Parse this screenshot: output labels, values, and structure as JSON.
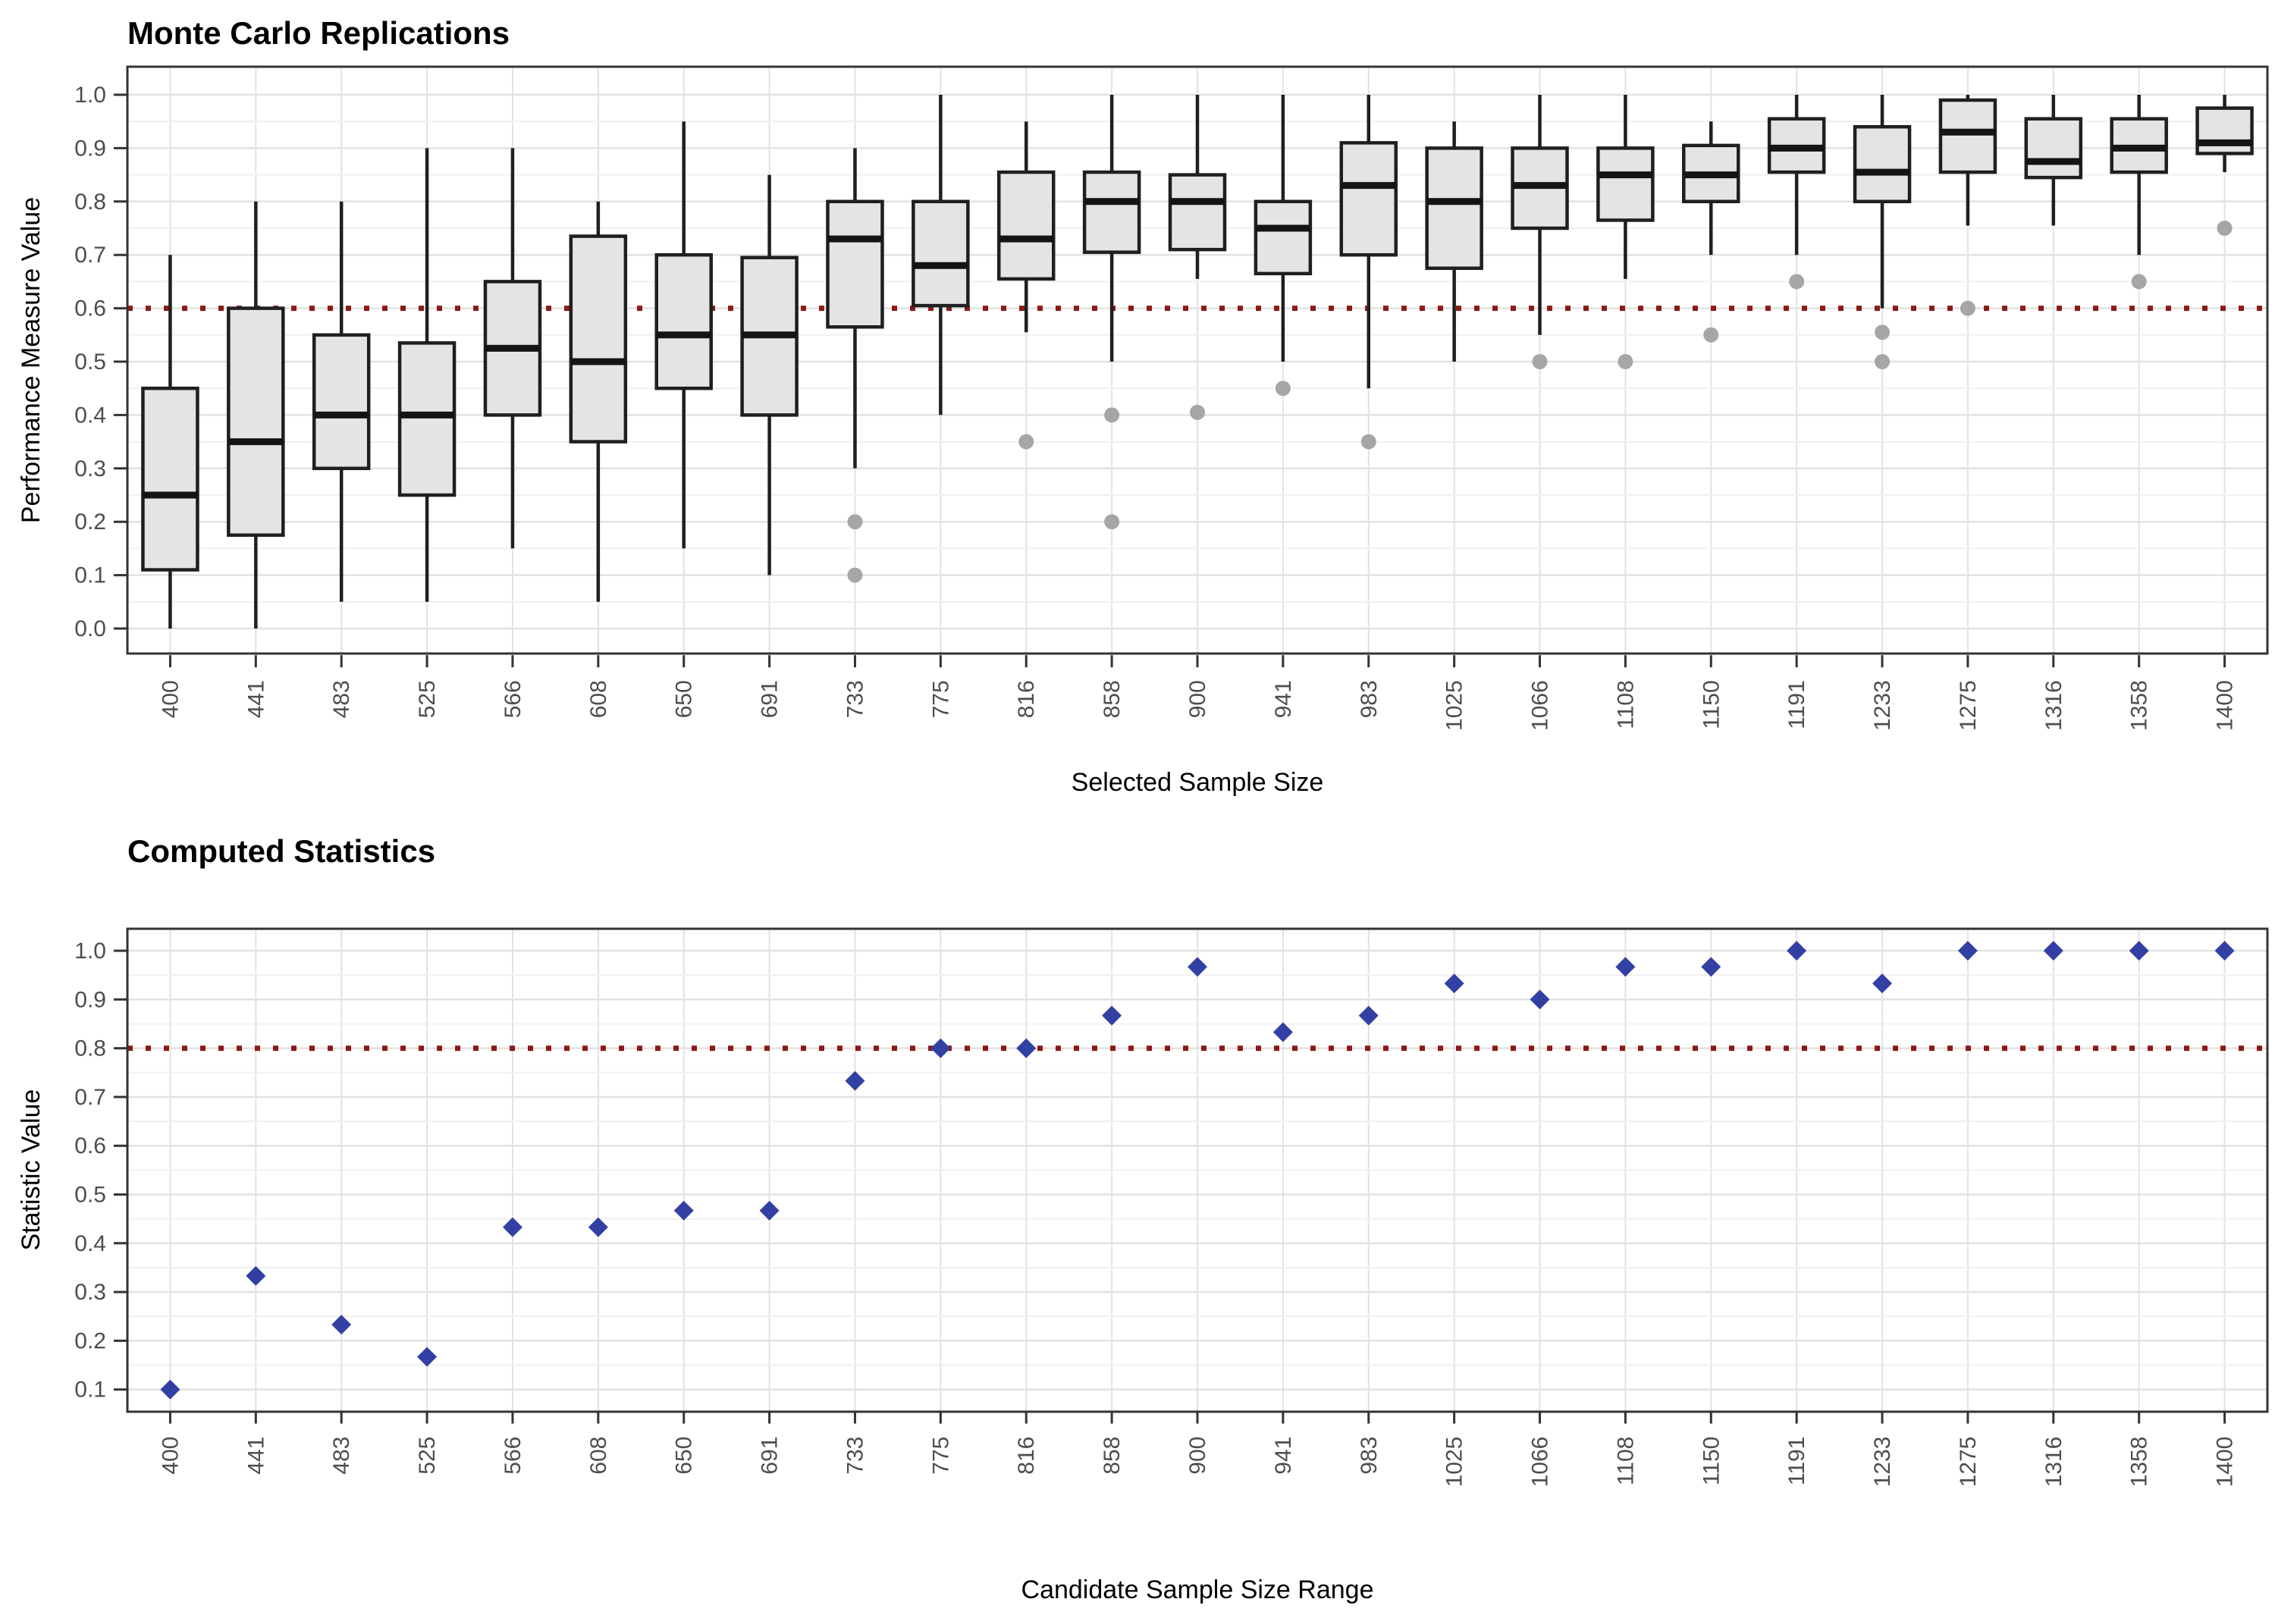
{
  "figure": {
    "background": "#ffffff",
    "panels": 2
  },
  "chart_data": [
    {
      "type": "boxplot",
      "title": "Monte Carlo Replications",
      "xlabel": "Selected Sample Size",
      "ylabel": "Performance Measure Value",
      "categories": [
        400,
        441,
        483,
        525,
        566,
        608,
        650,
        691,
        733,
        775,
        816,
        858,
        900,
        941,
        983,
        1025,
        1066,
        1108,
        1150,
        1191,
        1233,
        1275,
        1316,
        1358,
        1400
      ],
      "yticks": [
        0.0,
        0.1,
        0.2,
        0.3,
        0.4,
        0.5,
        0.6,
        0.7,
        0.8,
        0.9,
        1.0
      ],
      "ylim": [
        -0.05,
        1.05
      ],
      "grid": "on",
      "legend": "none",
      "ref_line": {
        "value": 0.6,
        "color": "#8B1A1A",
        "style": "dotted"
      },
      "boxes": [
        {
          "min": 0.0,
          "q1": 0.11,
          "median": 0.25,
          "q3": 0.45,
          "max": 0.7,
          "outliers": []
        },
        {
          "min": 0.0,
          "q1": 0.175,
          "median": 0.35,
          "q3": 0.6,
          "max": 0.8,
          "outliers": []
        },
        {
          "min": 0.05,
          "q1": 0.3,
          "median": 0.4,
          "q3": 0.55,
          "max": 0.8,
          "outliers": []
        },
        {
          "min": 0.05,
          "q1": 0.25,
          "median": 0.4,
          "q3": 0.535,
          "max": 0.9,
          "outliers": []
        },
        {
          "min": 0.15,
          "q1": 0.4,
          "median": 0.525,
          "q3": 0.65,
          "max": 0.9,
          "outliers": []
        },
        {
          "min": 0.05,
          "q1": 0.35,
          "median": 0.5,
          "q3": 0.735,
          "max": 0.8,
          "outliers": []
        },
        {
          "min": 0.15,
          "q1": 0.45,
          "median": 0.55,
          "q3": 0.7,
          "max": 0.95,
          "outliers": []
        },
        {
          "min": 0.1,
          "q1": 0.4,
          "median": 0.55,
          "q3": 0.695,
          "max": 0.85,
          "outliers": []
        },
        {
          "min": 0.3,
          "q1": 0.565,
          "median": 0.73,
          "q3": 0.8,
          "max": 0.9,
          "outliers": [
            0.2,
            0.1
          ]
        },
        {
          "min": 0.4,
          "q1": 0.605,
          "median": 0.68,
          "q3": 0.8,
          "max": 1.0,
          "outliers": []
        },
        {
          "min": 0.555,
          "q1": 0.655,
          "median": 0.73,
          "q3": 0.855,
          "max": 0.95,
          "outliers": [
            0.35
          ]
        },
        {
          "min": 0.5,
          "q1": 0.705,
          "median": 0.8,
          "q3": 0.855,
          "max": 1.0,
          "outliers": [
            0.4,
            0.2
          ]
        },
        {
          "min": 0.655,
          "q1": 0.71,
          "median": 0.8,
          "q3": 0.85,
          "max": 1.0,
          "outliers": [
            0.405
          ]
        },
        {
          "min": 0.5,
          "q1": 0.665,
          "median": 0.75,
          "q3": 0.8,
          "max": 1.0,
          "outliers": [
            0.45
          ]
        },
        {
          "min": 0.45,
          "q1": 0.7,
          "median": 0.83,
          "q3": 0.91,
          "max": 1.0,
          "outliers": [
            0.35
          ]
        },
        {
          "min": 0.5,
          "q1": 0.675,
          "median": 0.8,
          "q3": 0.9,
          "max": 0.95,
          "outliers": []
        },
        {
          "min": 0.55,
          "q1": 0.75,
          "median": 0.83,
          "q3": 0.9,
          "max": 1.0,
          "outliers": [
            0.5
          ]
        },
        {
          "min": 0.655,
          "q1": 0.765,
          "median": 0.85,
          "q3": 0.9,
          "max": 1.0,
          "outliers": [
            0.5
          ]
        },
        {
          "min": 0.7,
          "q1": 0.8,
          "median": 0.85,
          "q3": 0.905,
          "max": 0.95,
          "outliers": [
            0.55
          ]
        },
        {
          "min": 0.7,
          "q1": 0.855,
          "median": 0.9,
          "q3": 0.955,
          "max": 1.0,
          "outliers": [
            0.65
          ]
        },
        {
          "min": 0.6,
          "q1": 0.8,
          "median": 0.855,
          "q3": 0.94,
          "max": 1.0,
          "outliers": [
            0.555,
            0.5
          ]
        },
        {
          "min": 0.755,
          "q1": 0.855,
          "median": 0.93,
          "q3": 0.99,
          "max": 1.0,
          "outliers": [
            0.6
          ]
        },
        {
          "min": 0.755,
          "q1": 0.845,
          "median": 0.875,
          "q3": 0.955,
          "max": 1.0,
          "outliers": []
        },
        {
          "min": 0.7,
          "q1": 0.855,
          "median": 0.9,
          "q3": 0.955,
          "max": 1.0,
          "outliers": [
            0.65
          ]
        },
        {
          "min": 0.855,
          "q1": 0.89,
          "median": 0.91,
          "q3": 0.975,
          "max": 1.0,
          "outliers": [
            0.75
          ]
        }
      ],
      "box_fill": "#E4E4E4",
      "box_stroke": "#1F1F1F",
      "outlier_color": "#A6A6A6"
    },
    {
      "type": "scatter",
      "title": "Computed Statistics",
      "xlabel": "Candidate Sample Size Range",
      "ylabel": "Statistic Value",
      "categories": [
        400,
        441,
        483,
        525,
        566,
        608,
        650,
        691,
        733,
        775,
        816,
        858,
        900,
        941,
        983,
        1025,
        1066,
        1108,
        1150,
        1191,
        1233,
        1275,
        1316,
        1358,
        1400
      ],
      "values": [
        0.1,
        0.333,
        0.233,
        0.167,
        0.433,
        0.433,
        0.467,
        0.467,
        0.733,
        0.8,
        0.8,
        0.867,
        0.967,
        0.833,
        0.867,
        0.933,
        0.9,
        0.967,
        0.967,
        1.0,
        0.933,
        1.0,
        1.0,
        1.0,
        1.0
      ],
      "yticks": [
        0.1,
        0.2,
        0.3,
        0.4,
        0.5,
        0.6,
        0.7,
        0.8,
        0.9,
        1.0
      ],
      "ylim": [
        0.055,
        1.045
      ],
      "grid": "on",
      "legend": "none",
      "ref_line": {
        "value": 0.8,
        "color": "#8B1A1A",
        "style": "dotted"
      },
      "marker": "diamond",
      "marker_color": "#3340A3"
    }
  ],
  "style_colors": {
    "panel_border": "#333333",
    "grid_major": "#E2E2E2",
    "grid_minor": "#F0F0F0",
    "tick_label": "#4d4d4d",
    "ref_line": "#8B1A1A",
    "box_fill": "#E4E4E4",
    "box_stroke": "#1F1F1F",
    "median_stroke": "#141414",
    "outlier": "#A6A6A6",
    "diamond": "#3340A3"
  }
}
